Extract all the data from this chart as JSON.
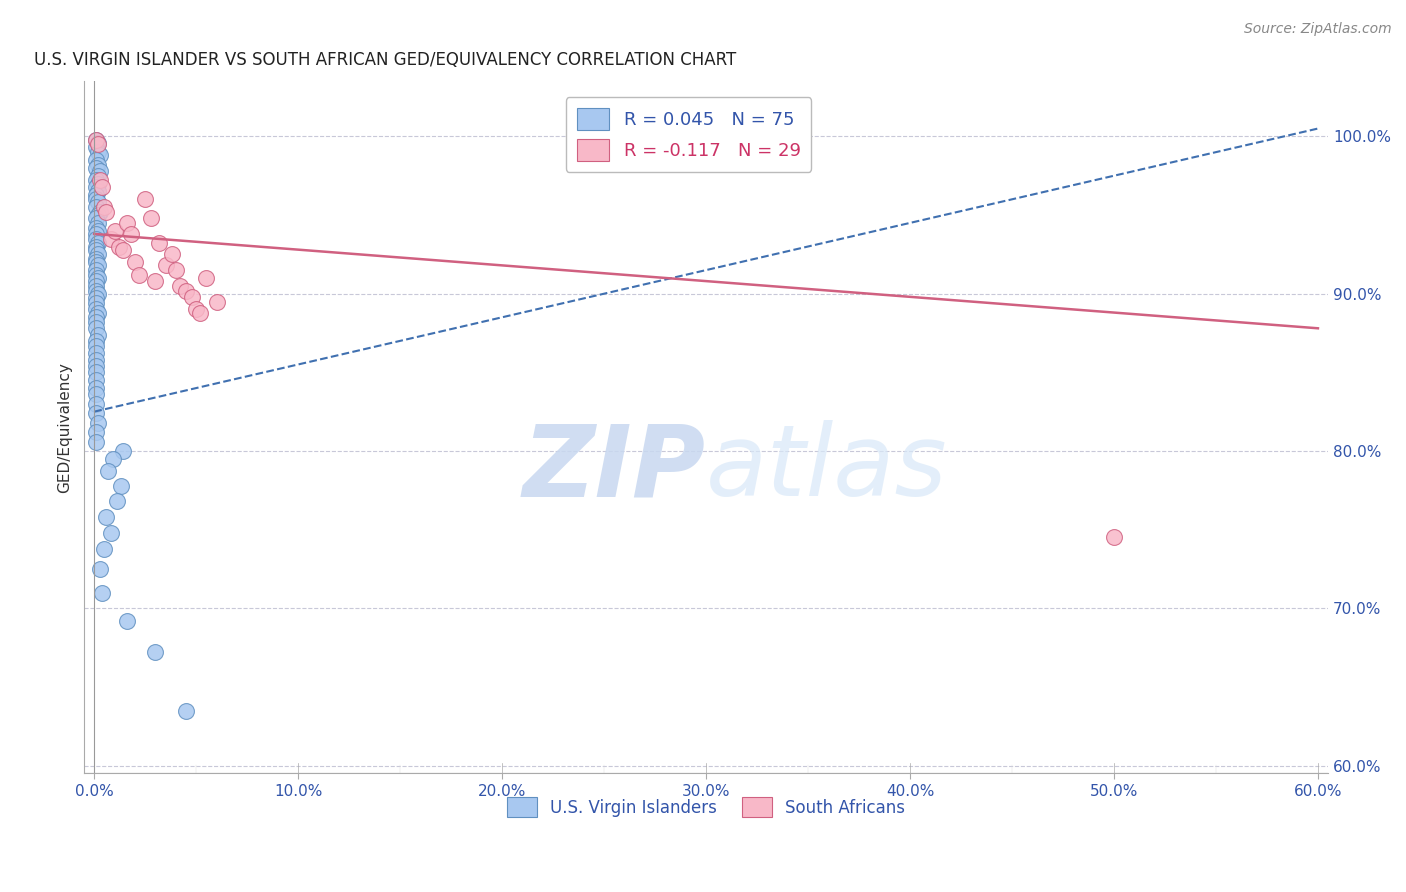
{
  "title": "U.S. VIRGIN ISLANDER VS SOUTH AFRICAN GED/EQUIVALENCY CORRELATION CHART",
  "source": "Source: ZipAtlas.com",
  "ylabel": "GED/Equivalency",
  "xlim": [
    -0.005,
    0.605
  ],
  "ylim": [
    0.595,
    1.035
  ],
  "xtick_labels": [
    "0.0%",
    "",
    "",
    "",
    "",
    "",
    "",
    "",
    "",
    "",
    "",
    "",
    "10.0%",
    "",
    "",
    "",
    "",
    "",
    "",
    "",
    "",
    "",
    "",
    "",
    "20.0%",
    "",
    "",
    "",
    "",
    "",
    "",
    "",
    "",
    "",
    "",
    "",
    "30.0%",
    "",
    "",
    "",
    "",
    "",
    "",
    "",
    "",
    "",
    "",
    "",
    "40.0%",
    "",
    "",
    "",
    "",
    "",
    "",
    "",
    "",
    "",
    "",
    "",
    "50.0%",
    "",
    "",
    "",
    "",
    "",
    "",
    "",
    "",
    "",
    "",
    "",
    "60.0%"
  ],
  "xtick_vals": [
    0.0,
    0.05,
    0.1,
    0.15,
    0.2,
    0.25,
    0.3,
    0.35,
    0.4,
    0.45,
    0.5,
    0.55,
    0.6
  ],
  "ytick_labels": [
    "60.0%",
    "70.0%",
    "80.0%",
    "90.0%",
    "100.0%"
  ],
  "ytick_vals": [
    0.6,
    0.7,
    0.8,
    0.9,
    1.0
  ],
  "grid_color": "#c8c8d8",
  "blue_color": "#a8c8f0",
  "blue_edge_color": "#6090c0",
  "pink_color": "#f8b8c8",
  "pink_edge_color": "#d06080",
  "blue_line_color": "#4070b0",
  "pink_line_color": "#d06080",
  "blue_R": 0.045,
  "blue_N": 75,
  "pink_R": -0.117,
  "pink_N": 29,
  "legend_bottom_blue": "U.S. Virgin Islanders",
  "legend_bottom_pink": "South Africans",
  "watermark_zip": "ZIP",
  "watermark_atlas": "atlas",
  "blue_line_x0": 0.0,
  "blue_line_y0": 0.825,
  "blue_line_x1": 0.6,
  "blue_line_y1": 1.005,
  "pink_line_x0": 0.0,
  "pink_line_y0": 0.938,
  "pink_line_x1": 0.6,
  "pink_line_y1": 0.878,
  "blue_dots_x": [
    0.001,
    0.002,
    0.001,
    0.002,
    0.003,
    0.001,
    0.002,
    0.001,
    0.003,
    0.002,
    0.001,
    0.002,
    0.001,
    0.002,
    0.001,
    0.001,
    0.002,
    0.001,
    0.003,
    0.002,
    0.001,
    0.002,
    0.001,
    0.002,
    0.001,
    0.001,
    0.002,
    0.001,
    0.001,
    0.002,
    0.001,
    0.001,
    0.002,
    0.001,
    0.001,
    0.002,
    0.001,
    0.001,
    0.001,
    0.002,
    0.001,
    0.001,
    0.001,
    0.002,
    0.001,
    0.001,
    0.001,
    0.002,
    0.001,
    0.001,
    0.001,
    0.001,
    0.001,
    0.001,
    0.001,
    0.001,
    0.001,
    0.001,
    0.001,
    0.002,
    0.001,
    0.001,
    0.014,
    0.009,
    0.007,
    0.013,
    0.011,
    0.006,
    0.008,
    0.005,
    0.003,
    0.004,
    0.016,
    0.03,
    0.045
  ],
  "blue_dots_y": [
    0.998,
    0.996,
    0.993,
    0.99,
    0.988,
    0.985,
    0.982,
    0.98,
    0.978,
    0.975,
    0.972,
    0.97,
    0.968,
    0.965,
    0.963,
    0.96,
    0.958,
    0.955,
    0.952,
    0.95,
    0.948,
    0.945,
    0.942,
    0.94,
    0.938,
    0.935,
    0.932,
    0.93,
    0.928,
    0.925,
    0.922,
    0.92,
    0.918,
    0.915,
    0.912,
    0.91,
    0.908,
    0.905,
    0.902,
    0.9,
    0.897,
    0.894,
    0.89,
    0.888,
    0.885,
    0.882,
    0.878,
    0.874,
    0.87,
    0.867,
    0.862,
    0.858,
    0.854,
    0.85,
    0.845,
    0.84,
    0.836,
    0.83,
    0.824,
    0.818,
    0.812,
    0.806,
    0.8,
    0.795,
    0.787,
    0.778,
    0.768,
    0.758,
    0.748,
    0.738,
    0.725,
    0.71,
    0.692,
    0.672,
    0.635
  ],
  "pink_dots_x": [
    0.001,
    0.002,
    0.003,
    0.004,
    0.005,
    0.006,
    0.008,
    0.01,
    0.012,
    0.014,
    0.016,
    0.018,
    0.02,
    0.022,
    0.025,
    0.028,
    0.03,
    0.032,
    0.035,
    0.038,
    0.04,
    0.042,
    0.045,
    0.048,
    0.05,
    0.052,
    0.055,
    0.06,
    0.5
  ],
  "pink_dots_y": [
    0.998,
    0.995,
    0.972,
    0.968,
    0.955,
    0.952,
    0.935,
    0.94,
    0.93,
    0.928,
    0.945,
    0.938,
    0.92,
    0.912,
    0.96,
    0.948,
    0.908,
    0.932,
    0.918,
    0.925,
    0.915,
    0.905,
    0.902,
    0.898,
    0.89,
    0.888,
    0.91,
    0.895,
    0.745
  ]
}
